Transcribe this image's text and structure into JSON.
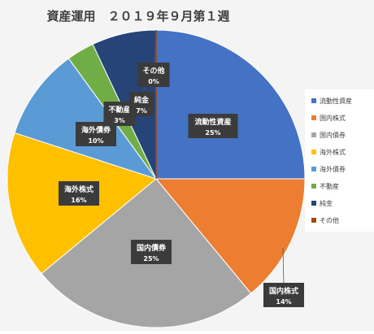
{
  "chart_data": {
    "type": "pie",
    "title": "資産運用　２０１９年９月第１週",
    "categories": [
      "流動性資産",
      "国内株式",
      "国内債券",
      "海外株式",
      "海外債券",
      "不動産",
      "純金",
      "その他"
    ],
    "values": [
      25,
      14,
      25,
      16,
      10,
      3,
      7,
      0
    ],
    "value_labels": [
      "25%",
      "14%",
      "25%",
      "16%",
      "10%",
      "3%",
      "7%",
      "0%"
    ],
    "colors": [
      "#4472c4",
      "#ed7d31",
      "#a5a5a5",
      "#ffc000",
      "#5b9bd5",
      "#70ad47",
      "#264478",
      "#9e480e"
    ],
    "legend_position": "right",
    "start_angle": "top, clockwise"
  }
}
